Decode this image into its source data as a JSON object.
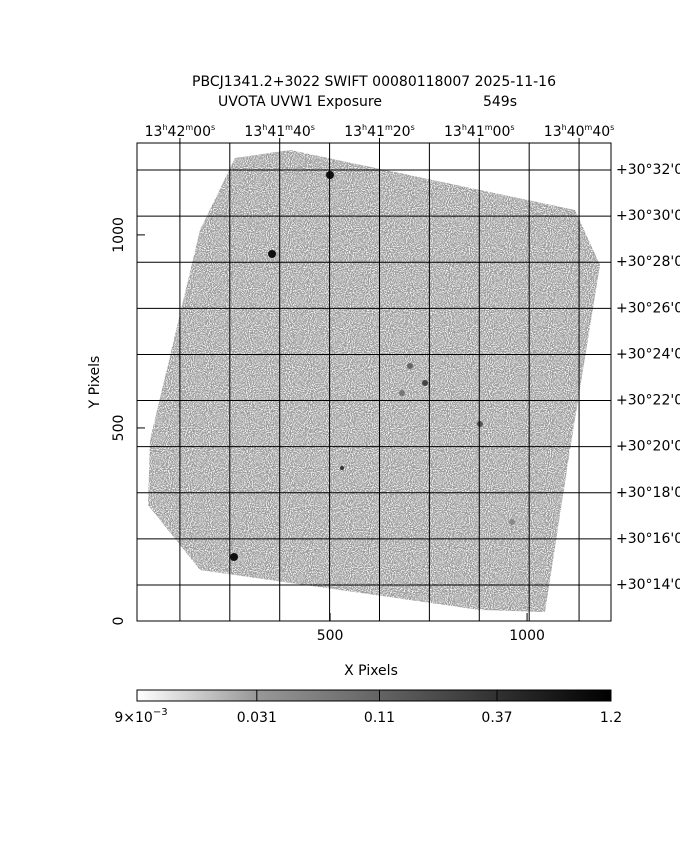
{
  "chart_data": {
    "type": "image",
    "title": "PBCJ1341.2+3022 SWIFT 00080118007 2025-11-16",
    "subtitle": "UVOTA UVW1 Exposure",
    "exposure": "549s",
    "xlabel": "X Pixels",
    "ylabel": "Y Pixels",
    "xlim": [
      10,
      1213
    ],
    "ylim": [
      0,
      1238
    ],
    "xticks": [
      500,
      1000
    ],
    "yticks": [
      0,
      500,
      1000
    ],
    "x2lim": [
      128.6,
      33.6
    ],
    "x2ticks": [
      {
        "value": 120,
        "label": [
          "13",
          "h",
          "42",
          "m",
          "00",
          "s"
        ]
      },
      {
        "value": 100,
        "label": [
          "13",
          "h",
          "41",
          "m",
          "40",
          "s"
        ]
      },
      {
        "value": 80,
        "label": [
          "13",
          "h",
          "41",
          "m",
          "20",
          "s"
        ]
      },
      {
        "value": 60,
        "label": [
          "13",
          "h",
          "41",
          "m",
          "00",
          "s"
        ]
      },
      {
        "value": 40,
        "label": [
          "13",
          "h",
          "40",
          "m",
          "40",
          "s"
        ]
      }
    ],
    "x2grid": [
      120,
      110,
      100,
      90,
      80,
      70,
      60,
      50,
      40
    ],
    "y2lim": [
      12.44,
      33.17
    ],
    "y2ticks": [
      {
        "value": 32,
        "label": "+30°32'0"
      },
      {
        "value": 30,
        "label": "+30°30'0"
      },
      {
        "value": 28,
        "label": "+30°28'0"
      },
      {
        "value": 26,
        "label": "+30°26'0"
      },
      {
        "value": 24,
        "label": "+30°24'0"
      },
      {
        "value": 22,
        "label": "+30°22'0"
      },
      {
        "value": 20,
        "label": "+30°20'0"
      },
      {
        "value": 18,
        "label": "+30°18'0"
      },
      {
        "value": 16,
        "label": "+30°16'0"
      },
      {
        "value": 14,
        "label": "+30°14'0"
      }
    ],
    "grid": true,
    "colorbar": {
      "lim": [
        0.009,
        1.2
      ],
      "log": true,
      "ticks": [
        {
          "value": 0.009,
          "label": [
            "9×10",
            "−3"
          ]
        },
        0.031,
        0.11,
        0.37,
        1.2
      ]
    }
  }
}
